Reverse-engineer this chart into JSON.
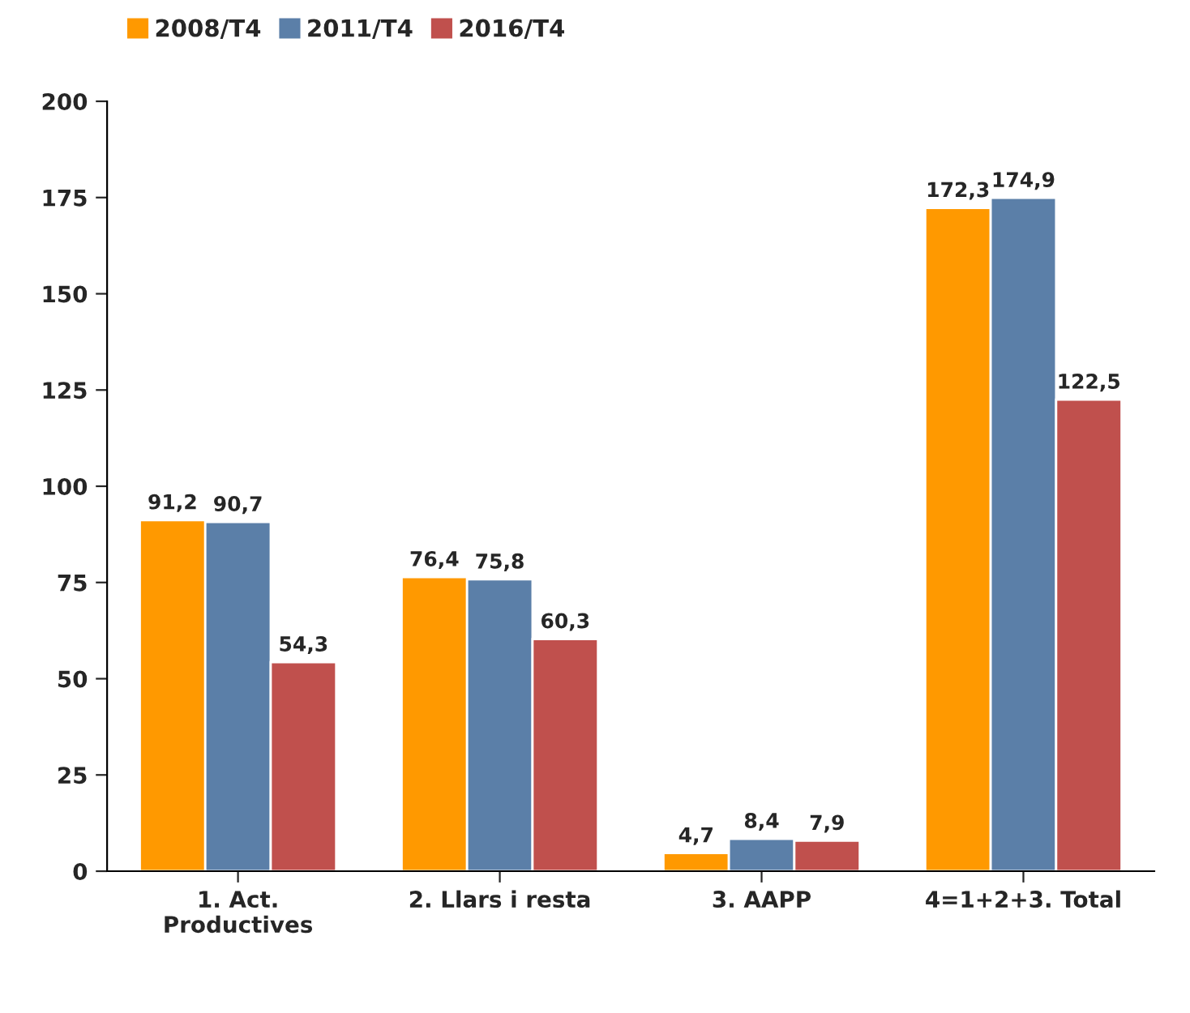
{
  "chart_data": {
    "type": "bar",
    "categories": [
      "1. Act.\nProductives",
      "2. Llars i resta",
      "3. AAPP",
      "4=1+2+3. Total"
    ],
    "series": [
      {
        "name": "2008/T4",
        "color": "#ff9900",
        "values": [
          91.2,
          76.4,
          4.7,
          172.3
        ],
        "value_labels": [
          "91,2",
          "76,4",
          "4,7",
          "172,3"
        ]
      },
      {
        "name": "2011/T4",
        "color": "#5b7fa8",
        "values": [
          90.7,
          75.8,
          8.4,
          174.9
        ],
        "value_labels": [
          "90,7",
          "75,8",
          "8,4",
          "174,9"
        ]
      },
      {
        "name": "2016/T4",
        "color": "#c0504d",
        "values": [
          54.3,
          60.3,
          7.9,
          122.5
        ],
        "value_labels": [
          "54,3",
          "60,3",
          "7,9",
          "122,5"
        ]
      }
    ],
    "ylim": [
      0,
      200
    ],
    "yticks": [
      0,
      25,
      50,
      75,
      100,
      125,
      150,
      175,
      200
    ],
    "grid": false,
    "legend": "top left"
  }
}
